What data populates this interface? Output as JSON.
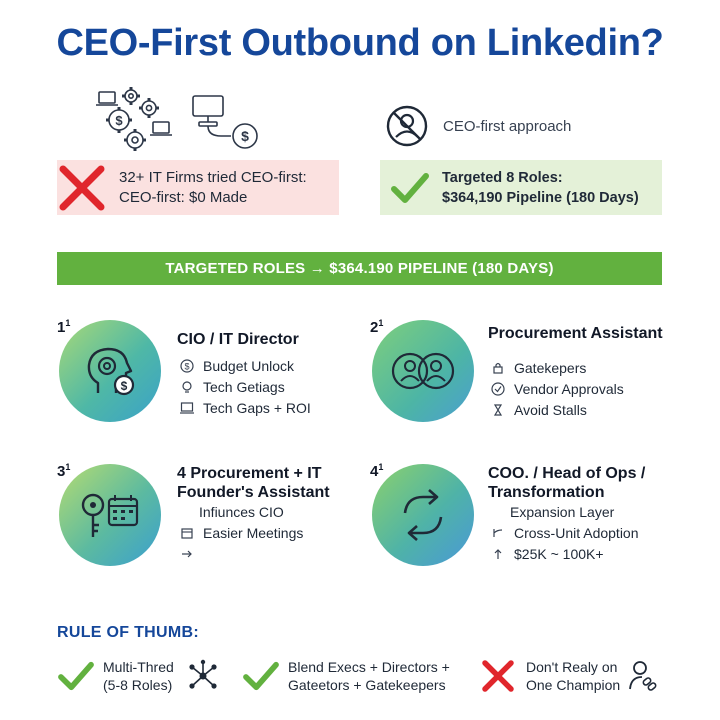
{
  "title": "CEO-First Outbound on Linkedin?",
  "ceo_approach": {
    "label": "CEO-first approach",
    "icon": "no-person-icon"
  },
  "left_box": {
    "line1": "32+ IT Firms tried CEO-first:",
    "line2": "CEO-first: $0 Made",
    "icon": "red-x-icon"
  },
  "right_box": {
    "line1": "Targeted 8 Roles:",
    "line2": "$364,190 Pipeline (180 Days)",
    "icon": "green-check-icon"
  },
  "banner": "TARGETED ROLES → $364.190 PIPELINE (180 DAYS)",
  "roles": [
    {
      "number": "1",
      "title_lines": [
        "CIO / IT Director"
      ],
      "items": [
        "Budget Unlock",
        "Tech Getiags",
        "Tech Gaps + ROI"
      ],
      "icon": "head-gear-dollar-icon"
    },
    {
      "number": "2",
      "title_lines": [
        "Procurement Assistant"
      ],
      "items": [
        "Gatekepers",
        "Vendor Approvals",
        "Avoid Stalls"
      ],
      "icon": "two-people-icon"
    },
    {
      "number": "3",
      "title_lines": [
        "4 Procurement + IT",
        "Founder's Assistant"
      ],
      "items": [
        "Infiunces CIO",
        "Easier Meetings",
        ""
      ],
      "icon": "key-calendar-icon"
    },
    {
      "number": "4",
      "title_lines": [
        "COO. / Head of Ops /",
        "Transformation"
      ],
      "items": [
        "Expansion Layer",
        "Cross-Unit Adoption",
        "$25K ~ 100K+"
      ],
      "icon": "cycle-arrows-icon"
    }
  ],
  "rule_of_thumb": {
    "title": "RULE OF THUMB:",
    "items": [
      {
        "line1": "Multi-Thred",
        "line2": "(5-8 Roles)",
        "icon": "green-check-icon"
      },
      {
        "line1": "Blend Execs + Directors +",
        "line2": "Gateetors + Gatekeepers",
        "icon": "green-check-icon"
      },
      {
        "line1": "Don't Realy on",
        "line2": "One Champion",
        "icon": "red-x-icon"
      }
    ]
  },
  "colors": {
    "title": "#15479a",
    "banner": "#62b13f",
    "check": "#62b13f",
    "cross": "#e0262c",
    "left_box_bg": "#fbe1e0",
    "right_box_bg": "#e4f1d8"
  }
}
